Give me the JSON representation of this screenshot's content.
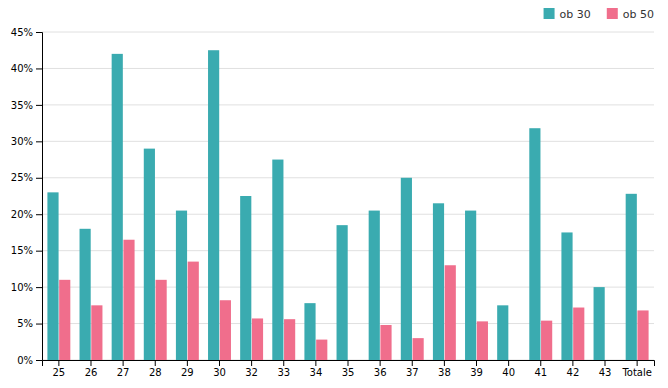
{
  "chart_data": {
    "type": "bar",
    "categories": [
      "25",
      "26",
      "27",
      "28",
      "29",
      "30",
      "32",
      "33",
      "34",
      "35",
      "36",
      "37",
      "38",
      "39",
      "40",
      "41",
      "42",
      "43",
      "Totale"
    ],
    "series": [
      {
        "name": "ob 30",
        "color": "#3AABB0",
        "values": [
          0.23,
          0.18,
          0.42,
          0.29,
          0.205,
          0.425,
          0.225,
          0.275,
          0.078,
          0.185,
          0.205,
          0.25,
          0.215,
          0.205,
          0.075,
          0.318,
          0.175,
          0.1,
          0.228
        ]
      },
      {
        "name": "ob 50",
        "color": "#F06E8C",
        "values": [
          0.11,
          0.075,
          0.165,
          0.11,
          0.135,
          0.082,
          0.057,
          0.056,
          0.028,
          0.0,
          0.048,
          0.03,
          0.13,
          0.053,
          0.0,
          0.054,
          0.072,
          0.0,
          0.068
        ]
      }
    ],
    "ylim": [
      0,
      0.45
    ],
    "yticks": [
      {
        "value": 0.0,
        "label": "0%"
      },
      {
        "value": 0.05,
        "label": "5%"
      },
      {
        "value": 0.1,
        "label": "10%"
      },
      {
        "value": 0.15,
        "label": "15%"
      },
      {
        "value": 0.2,
        "label": "20%"
      },
      {
        "value": 0.25,
        "label": "25%"
      },
      {
        "value": 0.3,
        "label": "30%"
      },
      {
        "value": 0.35,
        "label": "35%"
      },
      {
        "value": 0.4,
        "label": "40%"
      },
      {
        "value": 0.45,
        "label": "45%"
      }
    ],
    "grid": true,
    "legend": "upper right"
  }
}
